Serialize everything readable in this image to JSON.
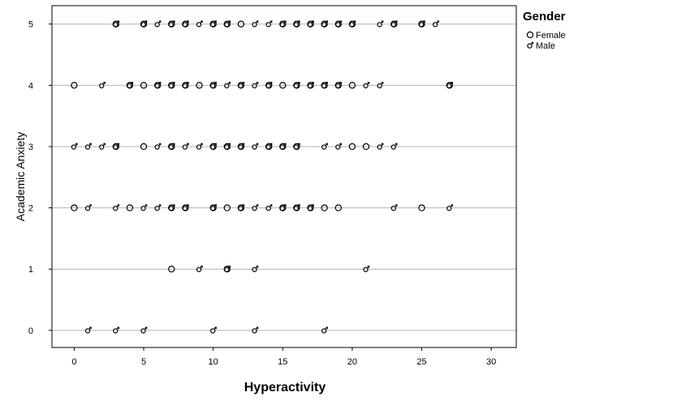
{
  "chart_data": {
    "type": "scatter",
    "xlabel": "Hyperactivity",
    "ylabel": "Academic Anxiety",
    "xlim": [
      -1.6,
      31.8
    ],
    "ylim": [
      -0.28,
      5.3
    ],
    "xticks": [
      0,
      5,
      10,
      15,
      20,
      25,
      30
    ],
    "yticks": [
      0,
      1,
      2,
      3,
      4,
      5
    ],
    "grid": "horizontal",
    "legend": {
      "title": "Gender",
      "position": "right"
    },
    "colors": {
      "marker": "#000000",
      "grid": "#b3b3b3",
      "frame": "#000000"
    },
    "series": [
      {
        "name": "Female",
        "marker": "open-circle",
        "points": [
          [
            3,
            5
          ],
          [
            5,
            5
          ],
          [
            7,
            5
          ],
          [
            8,
            5
          ],
          [
            10,
            5
          ],
          [
            11,
            5
          ],
          [
            12,
            5
          ],
          [
            15,
            5
          ],
          [
            16,
            5
          ],
          [
            17,
            5
          ],
          [
            18,
            5
          ],
          [
            19,
            5
          ],
          [
            20,
            5
          ],
          [
            23,
            5
          ],
          [
            25,
            5
          ],
          [
            0,
            4
          ],
          [
            4,
            4
          ],
          [
            5,
            4
          ],
          [
            6,
            4
          ],
          [
            7,
            4
          ],
          [
            8,
            4
          ],
          [
            9,
            4
          ],
          [
            10,
            4
          ],
          [
            12,
            4
          ],
          [
            14,
            4
          ],
          [
            15,
            4
          ],
          [
            16,
            4
          ],
          [
            17,
            4
          ],
          [
            18,
            4
          ],
          [
            19,
            4
          ],
          [
            20,
            4
          ],
          [
            27,
            4
          ],
          [
            3,
            3
          ],
          [
            5,
            3
          ],
          [
            7,
            3
          ],
          [
            10,
            3
          ],
          [
            11,
            3
          ],
          [
            12,
            3
          ],
          [
            14,
            3
          ],
          [
            15,
            3
          ],
          [
            16,
            3
          ],
          [
            20,
            3
          ],
          [
            21,
            3
          ],
          [
            0,
            2
          ],
          [
            4,
            2
          ],
          [
            7,
            2
          ],
          [
            8,
            2
          ],
          [
            10,
            2
          ],
          [
            11,
            2
          ],
          [
            12,
            2
          ],
          [
            15,
            2
          ],
          [
            16,
            2
          ],
          [
            17,
            2
          ],
          [
            18,
            2
          ],
          [
            19,
            2
          ],
          [
            25,
            2
          ],
          [
            7,
            1
          ],
          [
            11,
            1
          ]
        ]
      },
      {
        "name": "Male",
        "marker": "male",
        "points": [
          [
            3,
            5
          ],
          [
            5,
            5
          ],
          [
            6,
            5
          ],
          [
            7,
            5
          ],
          [
            8,
            5
          ],
          [
            9,
            5
          ],
          [
            10,
            5
          ],
          [
            11,
            5
          ],
          [
            13,
            5
          ],
          [
            14,
            5
          ],
          [
            15,
            5
          ],
          [
            16,
            5
          ],
          [
            17,
            5
          ],
          [
            18,
            5
          ],
          [
            19,
            5
          ],
          [
            20,
            5
          ],
          [
            22,
            5
          ],
          [
            23,
            5
          ],
          [
            25,
            5
          ],
          [
            26,
            5
          ],
          [
            2,
            4
          ],
          [
            4,
            4
          ],
          [
            6,
            4
          ],
          [
            7,
            4
          ],
          [
            8,
            4
          ],
          [
            10,
            4
          ],
          [
            11,
            4
          ],
          [
            12,
            4
          ],
          [
            13,
            4
          ],
          [
            14,
            4
          ],
          [
            16,
            4
          ],
          [
            17,
            4
          ],
          [
            18,
            4
          ],
          [
            19,
            4
          ],
          [
            21,
            4
          ],
          [
            22,
            4
          ],
          [
            27,
            4
          ],
          [
            0,
            3
          ],
          [
            1,
            3
          ],
          [
            2,
            3
          ],
          [
            3,
            3
          ],
          [
            6,
            3
          ],
          [
            7,
            3
          ],
          [
            8,
            3
          ],
          [
            9,
            3
          ],
          [
            10,
            3
          ],
          [
            11,
            3
          ],
          [
            12,
            3
          ],
          [
            13,
            3
          ],
          [
            14,
            3
          ],
          [
            15,
            3
          ],
          [
            16,
            3
          ],
          [
            18,
            3
          ],
          [
            19,
            3
          ],
          [
            22,
            3
          ],
          [
            23,
            3
          ],
          [
            1,
            2
          ],
          [
            3,
            2
          ],
          [
            5,
            2
          ],
          [
            6,
            2
          ],
          [
            7,
            2
          ],
          [
            8,
            2
          ],
          [
            10,
            2
          ],
          [
            12,
            2
          ],
          [
            13,
            2
          ],
          [
            14,
            2
          ],
          [
            15,
            2
          ],
          [
            16,
            2
          ],
          [
            17,
            2
          ],
          [
            23,
            2
          ],
          [
            27,
            2
          ],
          [
            9,
            1
          ],
          [
            11,
            1
          ],
          [
            13,
            1
          ],
          [
            21,
            1
          ],
          [
            1,
            0
          ],
          [
            3,
            0
          ],
          [
            5,
            0
          ],
          [
            10,
            0
          ],
          [
            13,
            0
          ],
          [
            18,
            0
          ]
        ]
      }
    ]
  }
}
